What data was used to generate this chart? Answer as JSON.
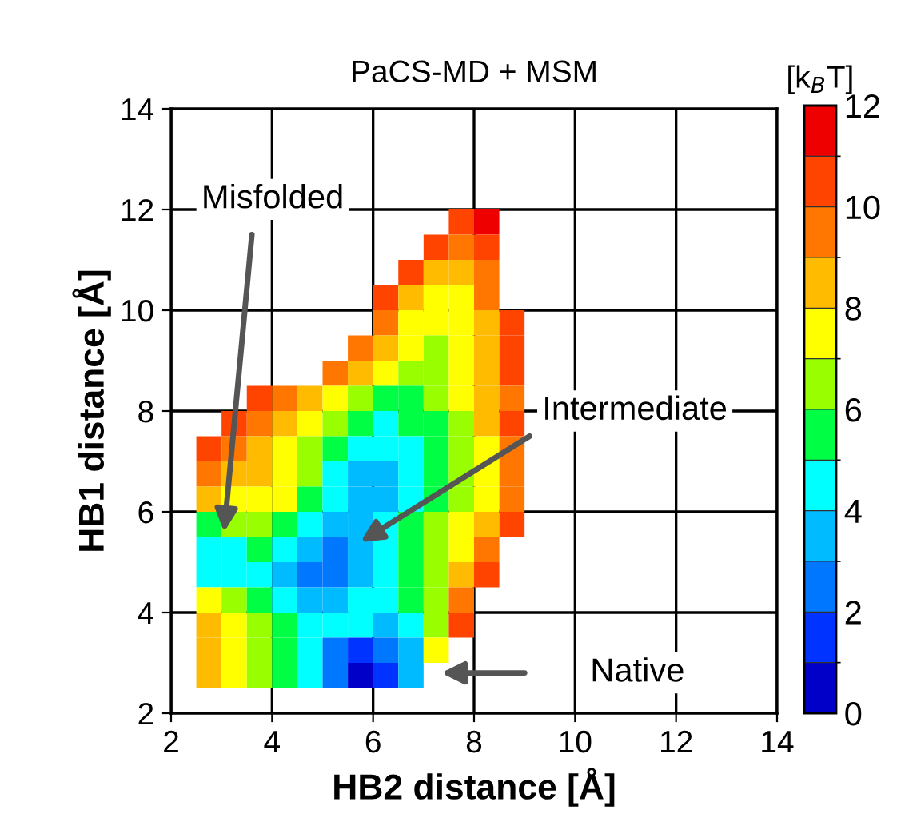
{
  "chart_data": {
    "type": "heatmap",
    "title": "PaCS-MD + MSM",
    "xlabel": "HB2 distance [Å]",
    "ylabel": "HB1 distance [Å]",
    "clabel": "[k$_{B}$T]",
    "x": [
      2.75,
      3.25,
      3.75,
      4.25,
      4.75,
      5.25,
      5.75,
      6.25,
      6.75,
      7.25,
      7.75,
      8.25,
      8.75
    ],
    "y": [
      11.75,
      11.25,
      10.75,
      10.25,
      9.75,
      9.25,
      8.75,
      8.25,
      7.75,
      7.25,
      6.75,
      6.25,
      5.75,
      5.25,
      4.75,
      4.25,
      3.75,
      3.25,
      2.75
    ],
    "cells": [
      [
        null,
        null,
        null,
        null,
        null,
        null,
        null,
        null,
        null,
        null,
        10.5,
        11.5,
        null
      ],
      [
        null,
        null,
        null,
        null,
        null,
        null,
        null,
        null,
        null,
        10.5,
        9.5,
        10.5,
        null
      ],
      [
        null,
        null,
        null,
        null,
        null,
        null,
        null,
        null,
        10.5,
        8.5,
        8.5,
        9.5,
        null
      ],
      [
        null,
        null,
        null,
        null,
        null,
        null,
        null,
        10.5,
        8.5,
        7.5,
        7.5,
        9.5,
        null
      ],
      [
        null,
        null,
        null,
        null,
        null,
        null,
        null,
        9.5,
        7.5,
        7.5,
        7.5,
        8.5,
        10.5
      ],
      [
        null,
        null,
        null,
        null,
        null,
        null,
        9.5,
        8.5,
        7.5,
        6.5,
        7.5,
        8.5,
        10.5
      ],
      [
        null,
        null,
        null,
        null,
        null,
        9.5,
        8.5,
        7.5,
        6.5,
        6.5,
        7.5,
        8.5,
        10.5
      ],
      [
        null,
        null,
        10.5,
        9.5,
        8.5,
        7.5,
        6.5,
        5.5,
        5.5,
        6.5,
        7.5,
        8.5,
        9.5
      ],
      [
        null,
        10.5,
        9.5,
        8.5,
        7.5,
        6.5,
        5.5,
        4.5,
        5.5,
        5.5,
        6.5,
        8.5,
        10.5
      ],
      [
        10.5,
        9.5,
        8.5,
        7.5,
        6.5,
        5.5,
        4.5,
        4.5,
        4.5,
        5.5,
        6.5,
        7.5,
        9.5
      ],
      [
        9.5,
        8.5,
        8.5,
        7.5,
        6.5,
        4.5,
        3.5,
        3.5,
        4.5,
        5.5,
        6.5,
        7.5,
        9.5
      ],
      [
        8.5,
        7.5,
        7.5,
        7.5,
        5.5,
        4.5,
        3.5,
        3.5,
        4.5,
        5.5,
        6.5,
        7.5,
        9.5
      ],
      [
        5.5,
        6.5,
        6.5,
        5.5,
        4.5,
        3.5,
        3.5,
        4.5,
        5.5,
        6.5,
        7.5,
        8.5,
        10.5
      ],
      [
        4.5,
        4.5,
        5.5,
        4.5,
        3.5,
        2.5,
        3.5,
        4.5,
        5.5,
        6.5,
        7.5,
        9.5,
        null
      ],
      [
        4.5,
        4.5,
        4.5,
        3.5,
        2.5,
        2.5,
        3.5,
        4.5,
        5.5,
        6.5,
        8.5,
        10.5,
        null
      ],
      [
        7.5,
        6.5,
        5.5,
        4.5,
        3.5,
        3.5,
        4.5,
        4.5,
        5.5,
        6.5,
        9.5,
        null,
        null
      ],
      [
        8.5,
        7.5,
        6.5,
        5.5,
        4.5,
        4.5,
        4.5,
        3.5,
        4.5,
        6.5,
        10.5,
        null,
        null
      ],
      [
        8.5,
        7.5,
        6.5,
        5.5,
        4.5,
        2.5,
        1.5,
        2.5,
        3.5,
        7.5,
        null,
        null,
        null
      ],
      [
        8.5,
        7.5,
        6.5,
        5.5,
        4.5,
        2.5,
        0.5,
        1.5,
        3.5,
        null,
        null,
        null,
        null
      ]
    ],
    "clim": [
      0,
      12
    ],
    "cticks": [
      0,
      2,
      4,
      6,
      8,
      10,
      12
    ],
    "colors": [
      "#0000c8",
      "#0033ff",
      "#0077ff",
      "#00bbff",
      "#00ffff",
      "#00ff44",
      "#99ff00",
      "#ffff00",
      "#ffbb00",
      "#ff7700",
      "#ff4400",
      "#ee0000"
    ],
    "xlim": [
      2,
      14
    ],
    "xticks": [
      2,
      4,
      6,
      8,
      10,
      12,
      14
    ],
    "ylim": [
      2,
      14
    ],
    "yticks": [
      2,
      4,
      6,
      8,
      10,
      12,
      14
    ],
    "grid": true,
    "annotations": [
      "Misfolded",
      "Intermediate",
      "Native"
    ]
  }
}
